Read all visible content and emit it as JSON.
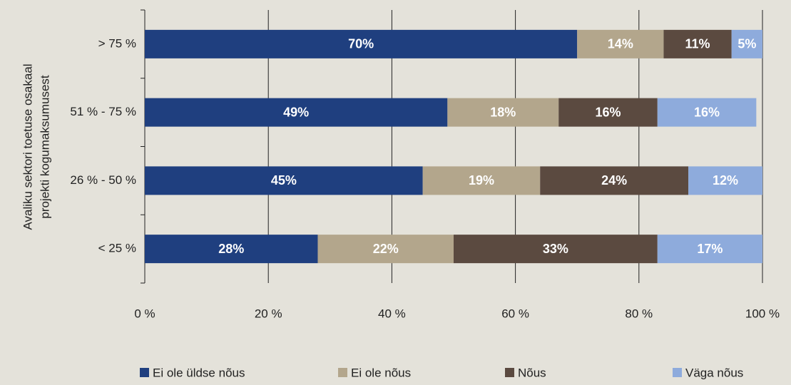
{
  "chart_data": {
    "type": "stacked_bar_horizontal",
    "y_label": [
      "Avaliku sektori toetuse osakaal",
      "projekti kogumaksumusest"
    ],
    "categories": [
      "> 75 %",
      "51 % - 75 %",
      "26 % - 50 %",
      "< 25 %"
    ],
    "series": [
      {
        "name": "Ei ole üldse nõus",
        "color": "#1f3f7f",
        "values": [
          70,
          49,
          45,
          28
        ],
        "value_labels": [
          "70%",
          "49%",
          "45%",
          "28%"
        ]
      },
      {
        "name": "Ei ole nõus",
        "color": "#b3a68c",
        "values": [
          14,
          18,
          19,
          22
        ],
        "value_labels": [
          "14%",
          "18%",
          "19%",
          "22%"
        ]
      },
      {
        "name": "Nõus",
        "color": "#5b4a40",
        "values": [
          11,
          16,
          24,
          33
        ],
        "value_labels": [
          "11%",
          "16%",
          "24%",
          "33%"
        ]
      },
      {
        "name": "Väga nõus",
        "color": "#8eabdc",
        "values": [
          5,
          16,
          12,
          17
        ],
        "value_labels": [
          "5%",
          "16%",
          "12%",
          "17%"
        ]
      }
    ],
    "xlim": [
      0,
      100
    ],
    "xticks": [
      {
        "value": 0,
        "label": "0 %"
      },
      {
        "value": 20,
        "label": "20 %"
      },
      {
        "value": 40,
        "label": "40 %"
      },
      {
        "value": 60,
        "label": "60 %"
      },
      {
        "value": 80,
        "label": "80 %"
      },
      {
        "value": 100,
        "label": "100 %"
      }
    ],
    "grid": true,
    "legend": "bottom"
  }
}
